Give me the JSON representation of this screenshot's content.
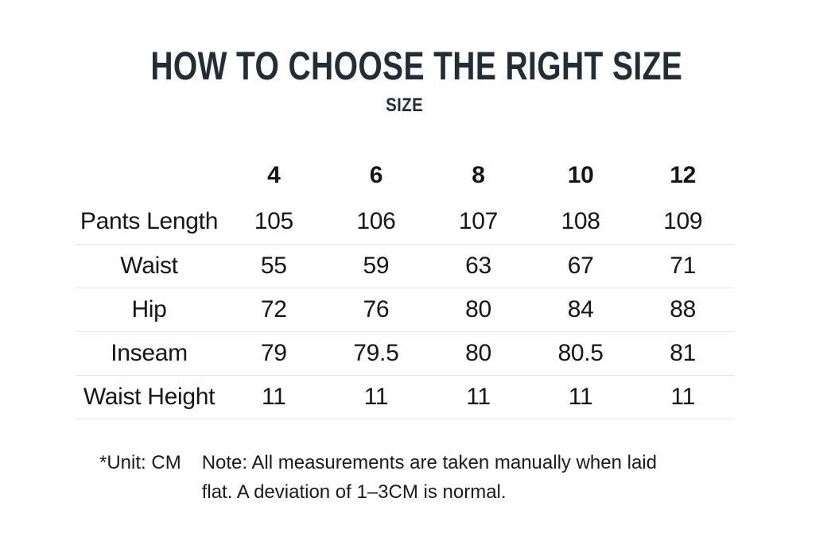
{
  "title": "HOW TO CHOOSE THE RIGHT SIZE",
  "subtitle": "SIZE",
  "chart_data": {
    "type": "table",
    "title": "HOW TO CHOOSE THE RIGHT SIZE",
    "subtitle": "SIZE",
    "unit": "CM",
    "columns": [
      "4",
      "6",
      "8",
      "10",
      "12"
    ],
    "rows": [
      {
        "label": "Pants Length",
        "values": [
          105,
          106,
          107,
          108,
          109
        ]
      },
      {
        "label": "Waist",
        "values": [
          55,
          59,
          63,
          67,
          71
        ]
      },
      {
        "label": "Hip",
        "values": [
          72,
          76,
          80,
          84,
          88
        ]
      },
      {
        "label": "Inseam",
        "values": [
          79,
          79.5,
          80,
          80.5,
          81
        ]
      },
      {
        "label": "Waist Height",
        "values": [
          11,
          11,
          11,
          11,
          11
        ]
      }
    ]
  },
  "footer": {
    "unit_label": "*Unit: CM",
    "note_lines": [
      "Note: All measurements are taken manually when laid",
      "flat. A deviation of 1–3CM is normal."
    ],
    "note_full": "Note: All measurements are taken manually when laid flat. A deviation of 1–3CM is normal."
  },
  "colors": {
    "background": "#ffffff",
    "title_text": "#222d36",
    "body_text": "#161616",
    "footer_text": "#1a1a1a",
    "divider": "#e3e3e3"
  }
}
